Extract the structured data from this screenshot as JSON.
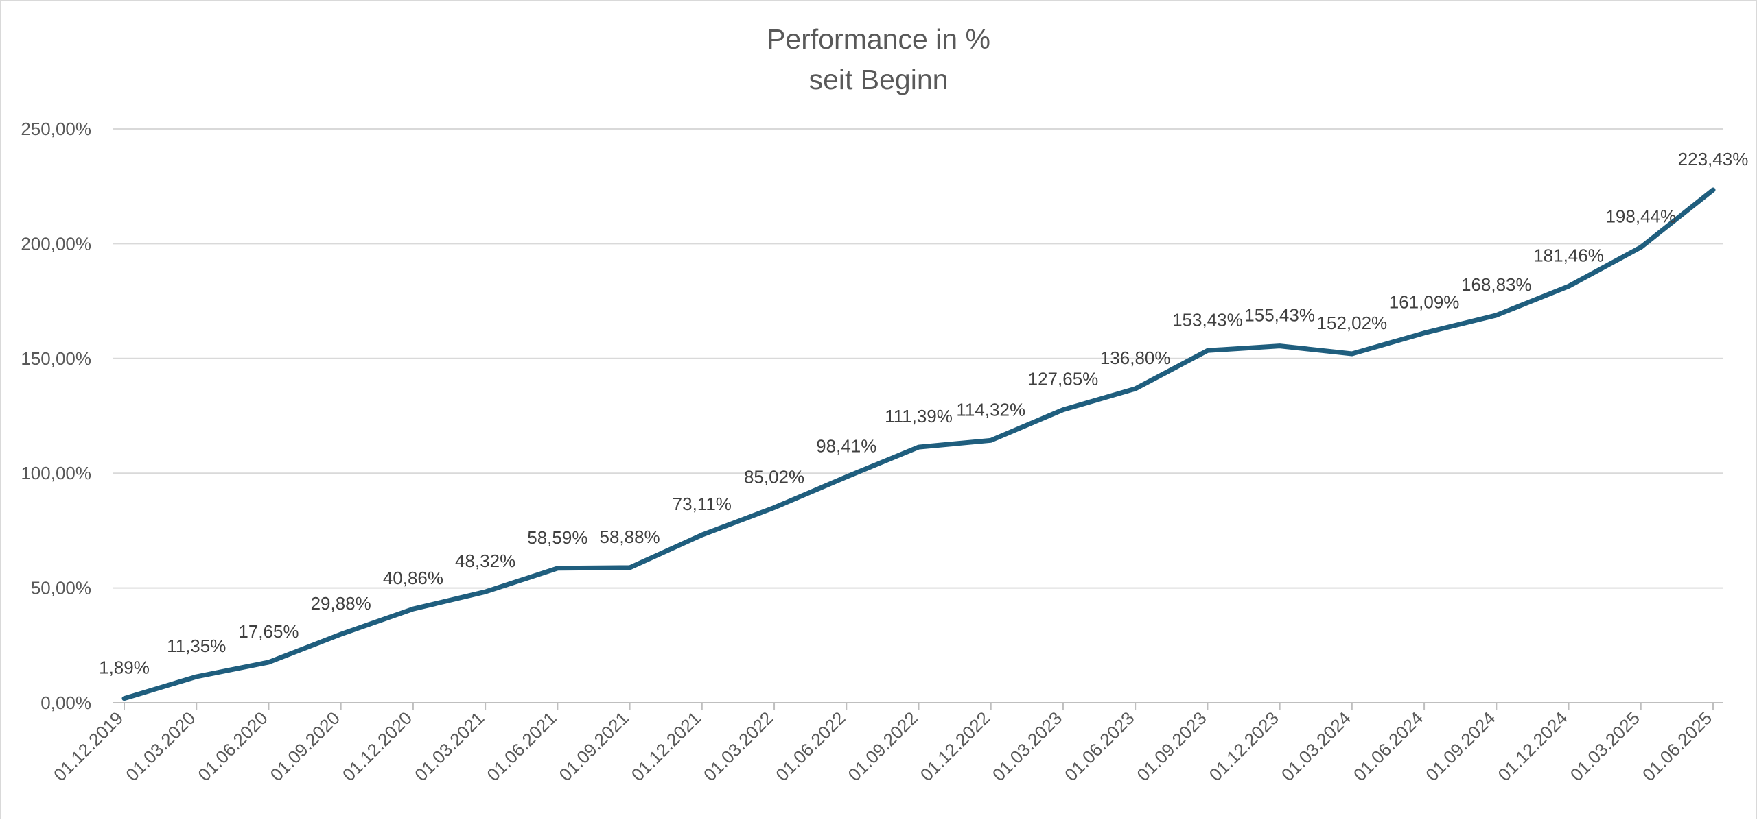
{
  "chart_data": {
    "type": "line",
    "title": [
      "Performance in %",
      "seit Beginn"
    ],
    "x": [
      "01.12.2019",
      "01.03.2020",
      "01.06.2020",
      "01.09.2020",
      "01.12.2020",
      "01.03.2021",
      "01.06.2021",
      "01.09.2021",
      "01.12.2021",
      "01.03.2022",
      "01.06.2022",
      "01.09.2022",
      "01.12.2022",
      "01.03.2023",
      "01.06.2023",
      "01.09.2023",
      "01.12.2023",
      "01.03.2024",
      "01.06.2024",
      "01.09.2024",
      "01.12.2024",
      "01.03.2025",
      "01.06.2025"
    ],
    "series": [
      {
        "values": [
          1.89,
          11.35,
          17.65,
          29.88,
          40.86,
          48.32,
          58.59,
          58.88,
          73.11,
          85.02,
          98.41,
          111.39,
          114.32,
          127.65,
          136.8,
          153.43,
          155.43,
          152.02,
          161.09,
          168.83,
          181.46,
          198.44,
          223.43
        ],
        "labels": [
          "1,89%",
          "11,35%",
          "17,65%",
          "29,88%",
          "40,86%",
          "48,32%",
          "58,59%",
          "58,88%",
          "73,11%",
          "85,02%",
          "98,41%",
          "111,39%",
          "114,32%",
          "127,65%",
          "136,80%",
          "153,43%",
          "155,43%",
          "152,02%",
          "161,09%",
          "168,83%",
          "181,46%",
          "198,44%",
          "223,43%"
        ],
        "color": "#1f5e7e"
      }
    ],
    "yticks": [
      0,
      50,
      100,
      150,
      200,
      250
    ],
    "ytick_labels": [
      "0,00%",
      "50,00%",
      "100,00%",
      "150,00%",
      "200,00%",
      "250,00%"
    ],
    "ylim": [
      0,
      250
    ],
    "grid": true,
    "gridline_color": "#d9d9d9",
    "legend": "none"
  }
}
